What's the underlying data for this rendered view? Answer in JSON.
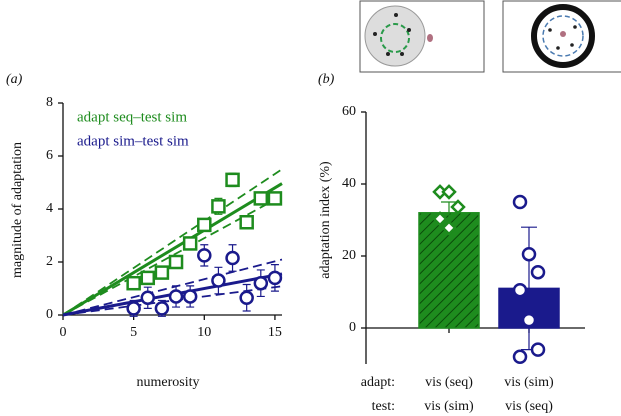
{
  "chart_data": [
    {
      "type": "scatter",
      "panel_label": "(a)",
      "x_label": "numerosity",
      "y_label": "magnitude of adaptation",
      "xlim": [
        0,
        15.5
      ],
      "xticks": [
        0,
        5,
        10,
        15
      ],
      "ylim": [
        0,
        8
      ],
      "yticks": [
        0,
        2,
        4,
        6,
        8
      ],
      "series": [
        {
          "name": "adapt seq–test sim",
          "color": "#1e8c1e",
          "marker": "square",
          "x": [
            5,
            6,
            7,
            8,
            9,
            10,
            11,
            12,
            13,
            14,
            15
          ],
          "values": [
            1.2,
            1.4,
            1.6,
            2.0,
            2.7,
            3.4,
            4.1,
            5.1,
            3.5,
            4.4,
            4.4
          ],
          "errors": [
            0.15,
            0.2,
            0.15,
            0.2,
            0.2,
            0.2,
            0.3,
            0.25,
            0.25,
            0.2,
            0.2
          ],
          "fit_slope": 0.32,
          "fit_slope_ci": [
            0.29,
            0.355
          ]
        },
        {
          "name": "adapt sim–test sim",
          "color": "#1a1a8c",
          "marker": "circle",
          "x": [
            5,
            6,
            7,
            8,
            9,
            10,
            11,
            12,
            13,
            14,
            15
          ],
          "values": [
            0.25,
            0.65,
            0.25,
            0.7,
            0.7,
            2.25,
            1.3,
            2.15,
            0.65,
            1.2,
            1.4
          ],
          "errors": [
            0.3,
            0.4,
            0.3,
            0.4,
            0.4,
            0.4,
            0.5,
            0.5,
            0.5,
            0.5,
            0.5
          ],
          "fit_slope": 0.1,
          "fit_slope_ci": [
            0.07,
            0.135
          ]
        }
      ]
    },
    {
      "type": "bar",
      "panel_label": "(b)",
      "y_label": "adaptation index (%)",
      "ylim": [
        -10,
        60
      ],
      "yticks": [
        0,
        20,
        40,
        60
      ],
      "row_labels": [
        "adapt:",
        "test:"
      ],
      "categories": [
        "vis (seq)",
        "vis (sim)"
      ],
      "test_labels": [
        "vis (sim)",
        "vis (seq)"
      ],
      "values": [
        32,
        11
      ],
      "errors": [
        3,
        17
      ],
      "colors": [
        "#1e8c1e",
        "#1a1a8c"
      ],
      "point_markers": [
        "diamond",
        "circle"
      ],
      "points": [
        [
          37.8,
          37.8,
          33.6,
          30.3,
          27.8
        ],
        [
          35,
          20.5,
          15.5,
          10.5,
          2.2,
          -6,
          -8
        ]
      ]
    }
  ]
}
